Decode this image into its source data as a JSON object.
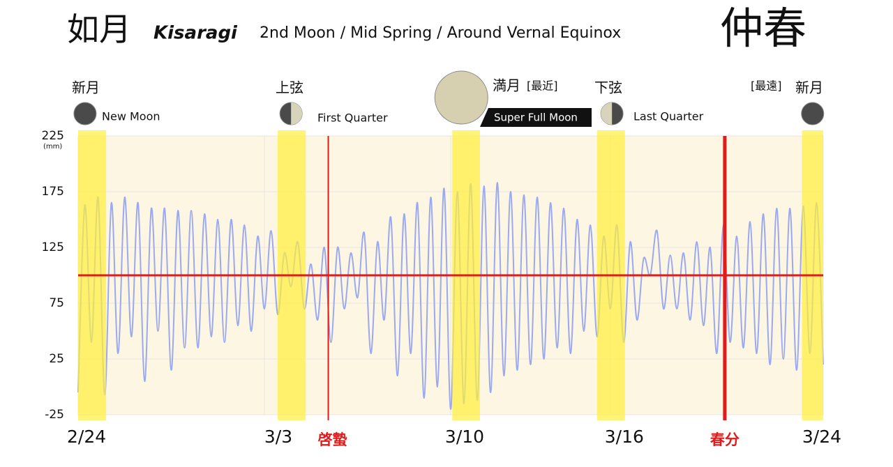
{
  "chart_data": {
    "type": "line",
    "title": "如月",
    "title_romaji": "Kisaragi",
    "subtitle": "2nd Moon / Mid Spring / Around Vernal Equinox",
    "title_season": "仲春",
    "y_unit": "(mm)",
    "xlim": [
      0,
      28
    ],
    "xticks": [
      {
        "value": 0,
        "label": "2/24"
      },
      {
        "value": 7,
        "label": "3/3"
      },
      {
        "value": 14,
        "label": "3/10"
      },
      {
        "value": 20,
        "label": "3/16"
      },
      {
        "value": 28,
        "label": "3/24"
      }
    ],
    "ylim": [
      -25,
      225
    ],
    "yticks": [
      -25,
      25,
      75,
      125,
      175,
      225
    ],
    "grid": true,
    "mean_level": 100,
    "moon_bands": [
      [
        0,
        1.05
      ],
      [
        7.5,
        8.55
      ],
      [
        14.06,
        15.1
      ],
      [
        19.5,
        20.55
      ],
      [
        27.2,
        28
      ]
    ],
    "events": [
      {
        "label": "啓蟄",
        "x": 9.4
      },
      {
        "label": "春分",
        "x": 24.3
      }
    ],
    "moon_phases": [
      {
        "kanji": "新月",
        "english": "New Moon",
        "x": 0.26
      },
      {
        "kanji": "上弦",
        "english": "First Quarter",
        "x": 8.0
      },
      {
        "kanji": "満月",
        "note": "[最近]",
        "english": "Super Full Moon",
        "x": 14.4
      },
      {
        "kanji": "下弦",
        "english": "Last Quarter",
        "x": 20.06
      },
      {
        "kanji": "新月",
        "note": "[最遠]",
        "x": 27.6
      }
    ],
    "series": [
      {
        "name": "tide",
        "color": "#9aa9f2",
        "x": [
          0,
          0.25,
          0.5,
          0.75,
          1,
          1.25,
          1.5,
          1.75,
          2,
          2.25,
          2.5,
          2.75,
          3,
          3.25,
          3.5,
          3.75,
          4,
          4.25,
          4.5,
          4.75,
          5,
          5.25,
          5.5,
          5.75,
          6,
          6.25,
          6.5,
          6.75,
          7,
          7.25,
          7.5,
          7.75,
          8,
          8.25,
          8.5,
          8.75,
          9,
          9.25,
          9.5,
          9.75,
          10,
          10.25,
          10.5,
          10.75,
          11,
          11.25,
          11.5,
          11.75,
          12,
          12.25,
          12.5,
          12.75,
          13,
          13.25,
          13.5,
          13.75,
          14,
          14.25,
          14.5,
          14.75,
          15,
          15.25,
          15.5,
          15.75,
          16,
          16.25,
          16.5,
          16.75,
          17,
          17.25,
          17.5,
          17.75,
          18,
          18.25,
          18.5,
          18.75,
          19,
          19.25,
          19.5,
          19.75,
          20,
          20.25,
          20.5,
          20.75,
          21,
          21.25,
          21.5,
          21.75,
          22,
          22.25,
          22.5,
          22.75,
          23,
          23.25,
          23.5,
          23.75,
          24,
          24.25,
          24.5,
          24.75,
          25,
          25.25,
          25.5,
          25.75,
          26,
          26.25,
          26.5,
          26.75,
          27,
          27.25,
          27.5,
          27.75,
          28
        ],
        "values": [
          -5,
          163,
          40,
          170,
          -7,
          165,
          30,
          170,
          45,
          165,
          5,
          160,
          50,
          160,
          15,
          158,
          35,
          158,
          35,
          155,
          45,
          150,
          40,
          150,
          55,
          145,
          50,
          135,
          70,
          140,
          65,
          120,
          90,
          130,
          70,
          110,
          60,
          125,
          40,
          125,
          70,
          120,
          80,
          138,
          30,
          130,
          60,
          152,
          10,
          155,
          30,
          165,
          -10,
          170,
          0,
          178,
          -20,
          175,
          -15,
          182,
          -12,
          180,
          -5,
          183,
          10,
          175,
          15,
          172,
          20,
          170,
          25,
          165,
          35,
          160,
          30,
          150,
          50,
          145,
          45,
          135,
          70,
          145,
          40,
          130,
          60,
          115,
          100,
          140,
          70,
          118,
          70,
          120,
          60,
          130,
          55,
          125,
          30,
          145,
          40,
          135,
          35,
          148,
          30,
          155,
          20,
          160,
          25,
          160,
          15,
          162,
          30,
          165,
          20
        ]
      }
    ]
  }
}
